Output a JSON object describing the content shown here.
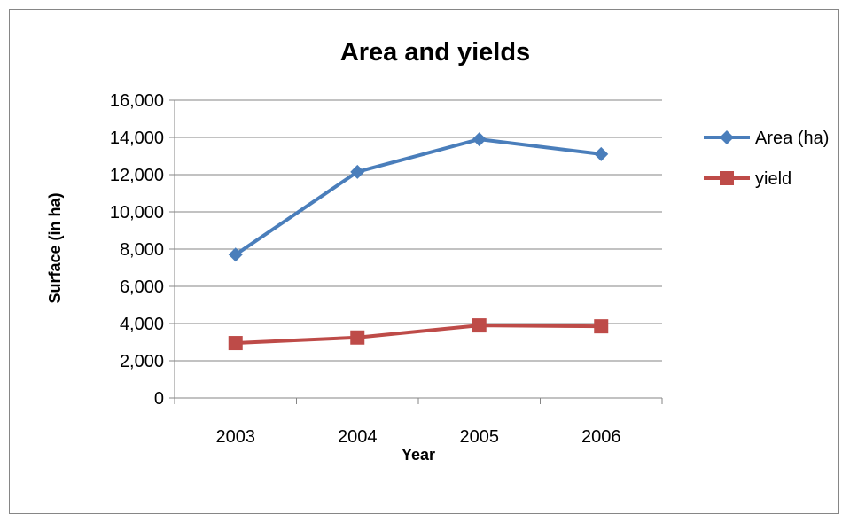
{
  "chart_data": {
    "type": "line",
    "title": "Area and yields",
    "xlabel": "Year",
    "ylabel": "Surface (in ha)",
    "categories": [
      "2003",
      "2004",
      "2005",
      "2006"
    ],
    "ylim": [
      0,
      16000
    ],
    "yticks": [
      0,
      2000,
      4000,
      6000,
      8000,
      10000,
      12000,
      14000,
      16000
    ],
    "ytick_labels": [
      "0",
      "2,000",
      "4,000",
      "6,000",
      "8,000",
      "10,000",
      "12,000",
      "14,000",
      "16,000"
    ],
    "grid": true,
    "legend_position": "right",
    "series": [
      {
        "name": "Area (ha)",
        "values": [
          7700,
          12150,
          13900,
          13100
        ],
        "color": "#4a7ebb",
        "marker": "diamond"
      },
      {
        "name": "yield",
        "values": [
          2950,
          3250,
          3900,
          3850
        ],
        "color": "#be4b48",
        "marker": "square"
      }
    ]
  }
}
